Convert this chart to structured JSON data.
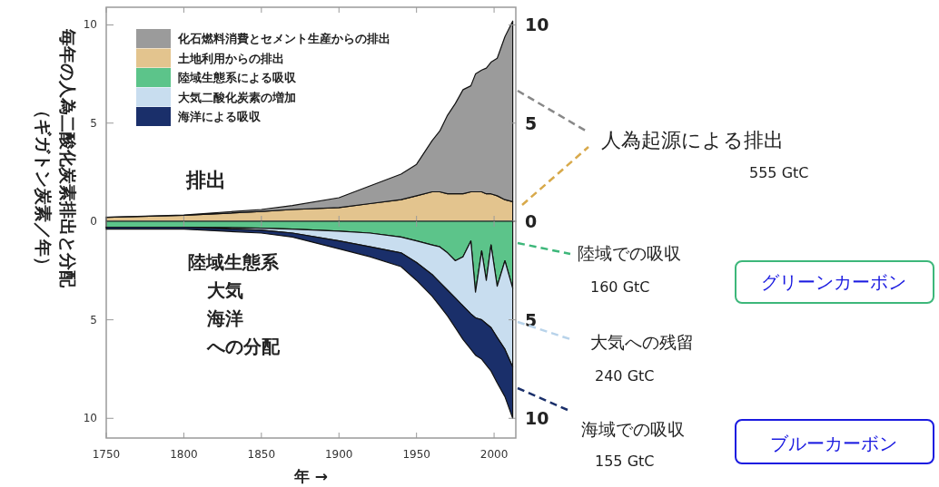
{
  "chart_data": [
    {
      "type": "area",
      "stacked": true,
      "ylabel": "毎年の人為二酸化炭素排出と分配（ギガトン炭素／年）",
      "tick_labels": "y",
      "x": [
        1750,
        1800,
        1850,
        1870,
        1900,
        1920,
        1940,
        1950,
        1960,
        1965,
        1970,
        1975,
        1980,
        1985,
        1988,
        1992,
        1995,
        1998,
        2002,
        2007,
        2012
      ],
      "xlim": [
        1750,
        2014
      ],
      "xticks": [
        {
          "value": 1750,
          "label": null
        },
        {
          "value": 1800,
          "label": null
        },
        {
          "value": 1850,
          "label": null
        },
        {
          "value": 1900,
          "label": null
        },
        {
          "value": 1950,
          "label": null
        },
        {
          "value": 2000,
          "label": null
        }
      ],
      "ylim": [
        0,
        10.9
      ],
      "yticks": [
        0,
        5,
        10
      ],
      "y2lim": [
        0,
        10.9
      ],
      "y2ticks": [
        0,
        5,
        10
      ],
      "legend": "top left",
      "series": [
        {
          "name": "土地利用からの排出",
          "color": "#e3c48e",
          "values": [
            0.2,
            0.3,
            0.5,
            0.6,
            0.7,
            0.9,
            1.1,
            1.3,
            1.5,
            1.5,
            1.4,
            1.4,
            1.4,
            1.5,
            1.5,
            1.5,
            1.4,
            1.4,
            1.3,
            1.1,
            1.0
          ]
        },
        {
          "name": "化石燃料消費とセメント生産からの排出",
          "color": "#9b9b9b",
          "values": [
            0.0,
            0.02,
            0.1,
            0.2,
            0.5,
            0.9,
            1.3,
            1.6,
            2.6,
            3.1,
            4.0,
            4.6,
            5.3,
            5.4,
            6.0,
            6.2,
            6.4,
            6.7,
            7.0,
            8.3,
            9.2
          ]
        }
      ],
      "annotations": [
        "排出",
        "人為起源による排出",
        "555 GtC"
      ]
    },
    {
      "type": "area",
      "stacked": true,
      "xlabel": "年 →",
      "x": [
        1750,
        1800,
        1850,
        1870,
        1900,
        1920,
        1940,
        1950,
        1960,
        1965,
        1970,
        1975,
        1980,
        1985,
        1988,
        1992,
        1995,
        1998,
        2002,
        2007,
        2012
      ],
      "xlim": [
        1750,
        2014
      ],
      "xticks": [
        1750,
        1800,
        1850,
        1900,
        1950,
        2000
      ],
      "ylim": [
        -11,
        0
      ],
      "yticks": [
        {
          "value": -10,
          "label": "10"
        },
        {
          "value": -5,
          "label": "5"
        }
      ],
      "y2lim": [
        -11,
        0
      ],
      "y2ticks": [
        {
          "value": -10,
          "label": "10"
        },
        {
          "value": -5,
          "label": "5"
        }
      ],
      "legend": "top left",
      "series": [
        {
          "name": "陸域生態系による吸収",
          "color": "#5cc48a",
          "values": [
            -0.3,
            -0.3,
            -0.35,
            -0.4,
            -0.5,
            -0.6,
            -0.8,
            -1.0,
            -1.2,
            -1.3,
            -1.6,
            -2.0,
            -1.8,
            -1.0,
            -3.6,
            -1.5,
            -3.0,
            -1.2,
            -3.3,
            -2.0,
            -3.4
          ]
        },
        {
          "name": "大気二酸化炭素の増加",
          "color": "#c8ddef",
          "values": [
            0.0,
            0.0,
            -0.1,
            -0.2,
            -0.5,
            -0.7,
            -0.8,
            -1.1,
            -1.5,
            -1.8,
            -1.9,
            -1.9,
            -2.5,
            -3.7,
            -1.3,
            -3.5,
            -2.2,
            -4.2,
            -2.6,
            -4.5,
            -4.0
          ]
        },
        {
          "name": "海洋による吸収",
          "color": "#1a2f6a",
          "values": [
            -0.1,
            -0.1,
            -0.15,
            -0.2,
            -0.4,
            -0.5,
            -0.7,
            -0.9,
            -1.1,
            -1.2,
            -1.3,
            -1.5,
            -1.7,
            -1.8,
            -1.9,
            -2.0,
            -2.1,
            -2.2,
            -2.3,
            -2.4,
            -2.6
          ]
        }
      ],
      "annotations": [
        "陸域生態系",
        "大気",
        "海洋",
        "への分配",
        "陸域での吸収",
        "160 GtC",
        "大気への残留",
        "240 GtC",
        "海域での吸収",
        "155 GtC",
        "グリーンカーボン",
        "ブルーカーボン"
      ]
    }
  ]
}
